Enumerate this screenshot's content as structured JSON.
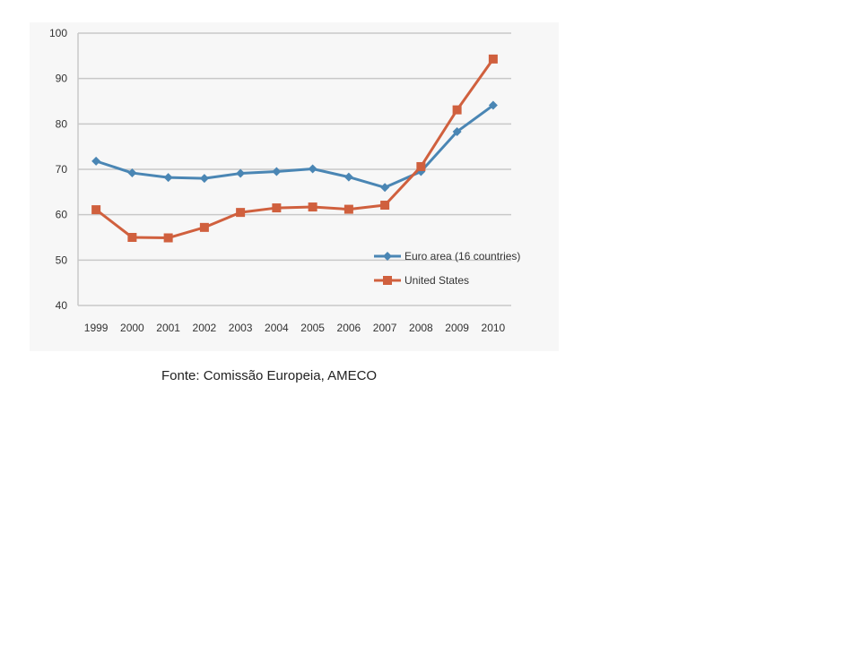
{
  "chart_data": {
    "type": "line",
    "title": "",
    "xlabel": "",
    "ylabel": "",
    "categories": [
      "1999",
      "2000",
      "2001",
      "2002",
      "2003",
      "2004",
      "2005",
      "2006",
      "2007",
      "2008",
      "2009",
      "2010"
    ],
    "yticks": [
      "40",
      "50",
      "60",
      "70",
      "80",
      "90",
      "100"
    ],
    "ylim": [
      40,
      100
    ],
    "grid": "horizontal",
    "legend_position": "right",
    "series": [
      {
        "name": "Euro area (16 countries)",
        "color": "#4a86b4",
        "marker": "diamond",
        "values": [
          71.8,
          69.2,
          68.2,
          68.0,
          69.1,
          69.5,
          70.1,
          68.3,
          66.0,
          69.5,
          78.3,
          84.1
        ]
      },
      {
        "name": "United States",
        "color": "#d0603e",
        "marker": "square",
        "values": [
          61.1,
          55.0,
          54.9,
          57.2,
          60.5,
          61.5,
          61.7,
          61.2,
          62.1,
          70.6,
          83.1,
          94.3
        ]
      }
    ]
  },
  "source_note": "Fonte: Comissão Europeia, AMECO"
}
